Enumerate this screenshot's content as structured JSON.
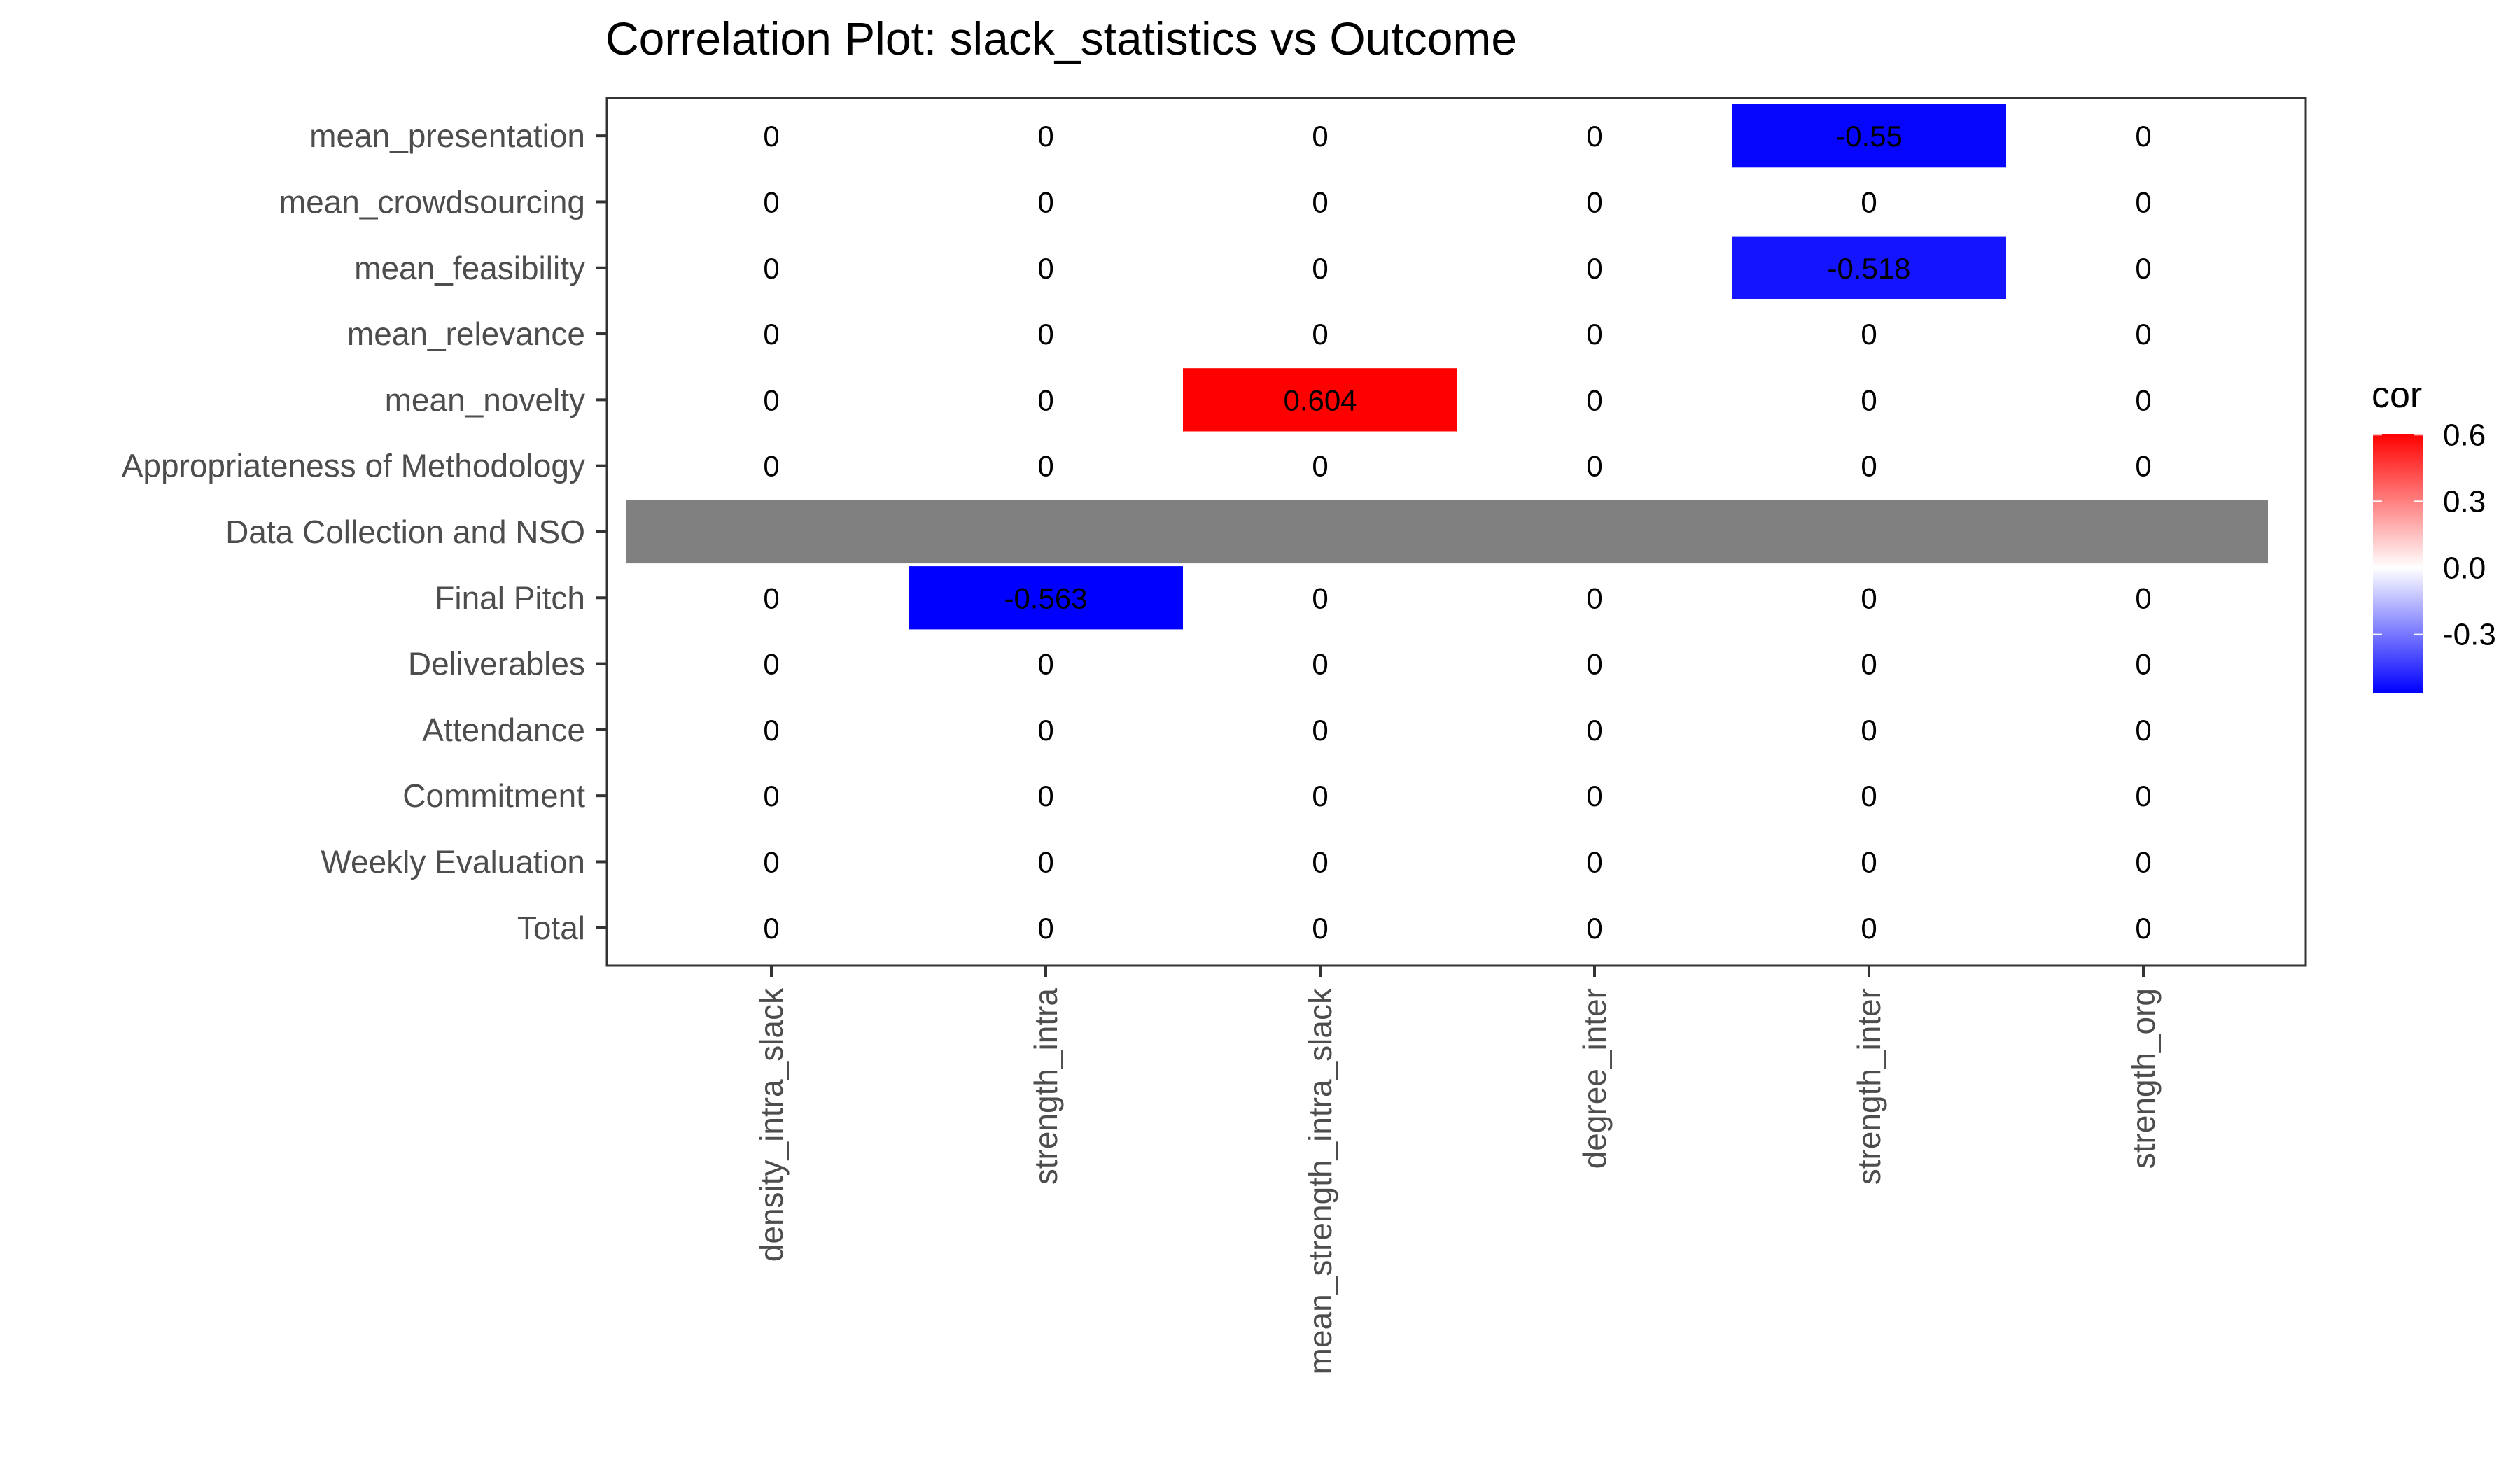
{
  "chart_data": {
    "type": "heatmap",
    "title": "Correlation Plot: slack_statistics vs Outcome",
    "xlabel": "",
    "ylabel": "",
    "x_categories": [
      "density_intra_slack",
      "strength_intra",
      "mean_strength_intra_slack",
      "degree_inter",
      "strength_inter",
      "strength_org"
    ],
    "y_categories": [
      "mean_presentation",
      "mean_crowdsourcing",
      "mean_feasibility",
      "mean_relevance",
      "mean_novelty",
      "Appropriateness of Methodology",
      "Data Collection and NSO",
      "Final Pitch",
      "Deliverables",
      "Attendance",
      "Commitment",
      "Weekly Evaluation",
      "Total"
    ],
    "values": [
      [
        0,
        0,
        0,
        0,
        -0.55,
        0
      ],
      [
        0,
        0,
        0,
        0,
        0,
        0
      ],
      [
        0,
        0,
        0,
        0,
        -0.518,
        0
      ],
      [
        0,
        0,
        0,
        0,
        0,
        0
      ],
      [
        0,
        0,
        0.604,
        0,
        0,
        0
      ],
      [
        0,
        0,
        0,
        0,
        0,
        0
      ],
      [
        null,
        null,
        null,
        null,
        null,
        null
      ],
      [
        0,
        -0.563,
        0,
        0,
        0,
        0
      ],
      [
        0,
        0,
        0,
        0,
        0,
        0
      ],
      [
        0,
        0,
        0,
        0,
        0,
        0
      ],
      [
        0,
        0,
        0,
        0,
        0,
        0
      ],
      [
        0,
        0,
        0,
        0,
        0,
        0
      ],
      [
        0,
        0,
        0,
        0,
        0,
        0
      ]
    ],
    "legend": {
      "title": "cor",
      "ticks": [
        "0.6",
        "0.3",
        "0.0",
        "-0.3"
      ],
      "tick_values": [
        0.6,
        0.3,
        0.0,
        -0.3
      ],
      "range": [
        -0.563,
        0.604
      ],
      "placement": "right"
    },
    "colors": {
      "low": "#0000FF",
      "mid": "#FFFFFF",
      "high": "#FF0000",
      "na": "#808080"
    },
    "grid": false
  }
}
